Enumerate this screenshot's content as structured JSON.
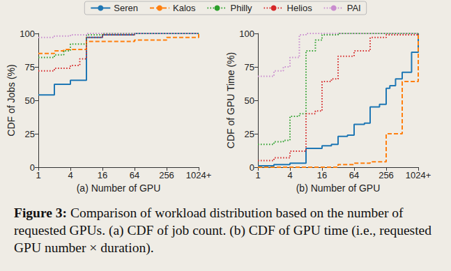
{
  "caption": {
    "label": "Figure 3:",
    "text": "Comparison of workload distribution based on the number of requested GPUs. (a) CDF of job count. (b) CDF of GPU time (i.e., requested GPU number × duration)."
  },
  "chart_data": [
    {
      "type": "line",
      "x_label": "(a) Number of GPU",
      "y_label": "CDF of Jobs (%)",
      "log": "x",
      "grid": false,
      "legend": "top",
      "xlim": [
        1,
        1024
      ],
      "xticks": [
        1,
        4,
        16,
        64,
        256,
        {
          "value": 1024,
          "label": "1024+"
        }
      ],
      "ylim": [
        0,
        100
      ],
      "yticks": [
        0,
        25,
        50,
        75,
        100
      ],
      "series": [
        {
          "name": "Seren",
          "color": "#1f77b4",
          "line_style": "solid",
          "x": [
            1,
            2,
            4,
            8,
            16,
            64,
            1024
          ],
          "values": [
            54,
            62,
            65,
            97,
            99,
            100,
            100
          ]
        },
        {
          "name": "Kalos",
          "color": "#ff7f0e",
          "line_style": "dashed",
          "x": [
            1,
            2,
            3,
            8,
            16,
            64,
            256,
            1024
          ],
          "values": [
            85,
            87,
            88,
            94,
            94,
            95,
            97,
            100
          ]
        },
        {
          "name": "Philly",
          "color": "#2ca02c",
          "line_style": "dotted",
          "x": [
            1,
            2,
            3,
            4,
            8,
            16,
            1024
          ],
          "values": [
            82,
            84,
            87,
            92,
            99,
            100,
            100
          ]
        },
        {
          "name": "Helios",
          "color": "#d62728",
          "line_style": "dotted",
          "x": [
            1,
            2,
            4,
            6,
            8,
            16,
            64,
            1024
          ],
          "values": [
            72,
            74,
            76,
            81,
            97,
            99,
            100,
            100
          ]
        },
        {
          "name": "PAI",
          "color": "#c98ccf",
          "line_style": "dotted",
          "x": [
            1,
            2,
            4,
            8,
            1024
          ],
          "values": [
            97,
            98,
            99,
            100,
            100
          ]
        }
      ]
    },
    {
      "type": "line",
      "x_label": "(b) Number of GPU",
      "y_label": "CDF of GPU Time (%)",
      "log": "x",
      "grid": false,
      "xlim": [
        1,
        1024
      ],
      "xticks": [
        1,
        4,
        16,
        64,
        256,
        {
          "value": 1024,
          "label": "1024+"
        }
      ],
      "ylim": [
        0,
        100
      ],
      "yticks": [
        0,
        25,
        50,
        75,
        100
      ],
      "series": [
        {
          "name": "Seren",
          "color": "#1f77b4",
          "line_style": "solid",
          "x": [
            1,
            2,
            4,
            8,
            16,
            24,
            32,
            48,
            64,
            100,
            128,
            192,
            256,
            300,
            384,
            512,
            768,
            1024
          ],
          "values": [
            1,
            2,
            3,
            14,
            16,
            17,
            23,
            24,
            32,
            33,
            45,
            47,
            59,
            61,
            66,
            71,
            86,
            100
          ]
        },
        {
          "name": "Kalos",
          "color": "#ff7f0e",
          "line_style": "dashed",
          "x": [
            1,
            32,
            64,
            128,
            256,
            512,
            1024
          ],
          "values": [
            0,
            2,
            3,
            4,
            25,
            64,
            100
          ]
        },
        {
          "name": "Philly",
          "color": "#2ca02c",
          "line_style": "dotted",
          "x": [
            1,
            2,
            3,
            4,
            6,
            8,
            12,
            16,
            32,
            1024
          ],
          "values": [
            17,
            19,
            20,
            38,
            40,
            87,
            95,
            99,
            100,
            100
          ]
        },
        {
          "name": "Helios",
          "color": "#d62728",
          "line_style": "dotted",
          "x": [
            1,
            2,
            4,
            8,
            12,
            16,
            24,
            32,
            64,
            128,
            256,
            1024
          ],
          "values": [
            5,
            7,
            12,
            40,
            42,
            64,
            66,
            83,
            87,
            97,
            99,
            100
          ]
        },
        {
          "name": "PAI",
          "color": "#c98ccf",
          "line_style": "dotted",
          "x": [
            1,
            2,
            3,
            4,
            6,
            8,
            1024
          ],
          "values": [
            68,
            72,
            75,
            82,
            99,
            100,
            100
          ]
        }
      ]
    }
  ]
}
